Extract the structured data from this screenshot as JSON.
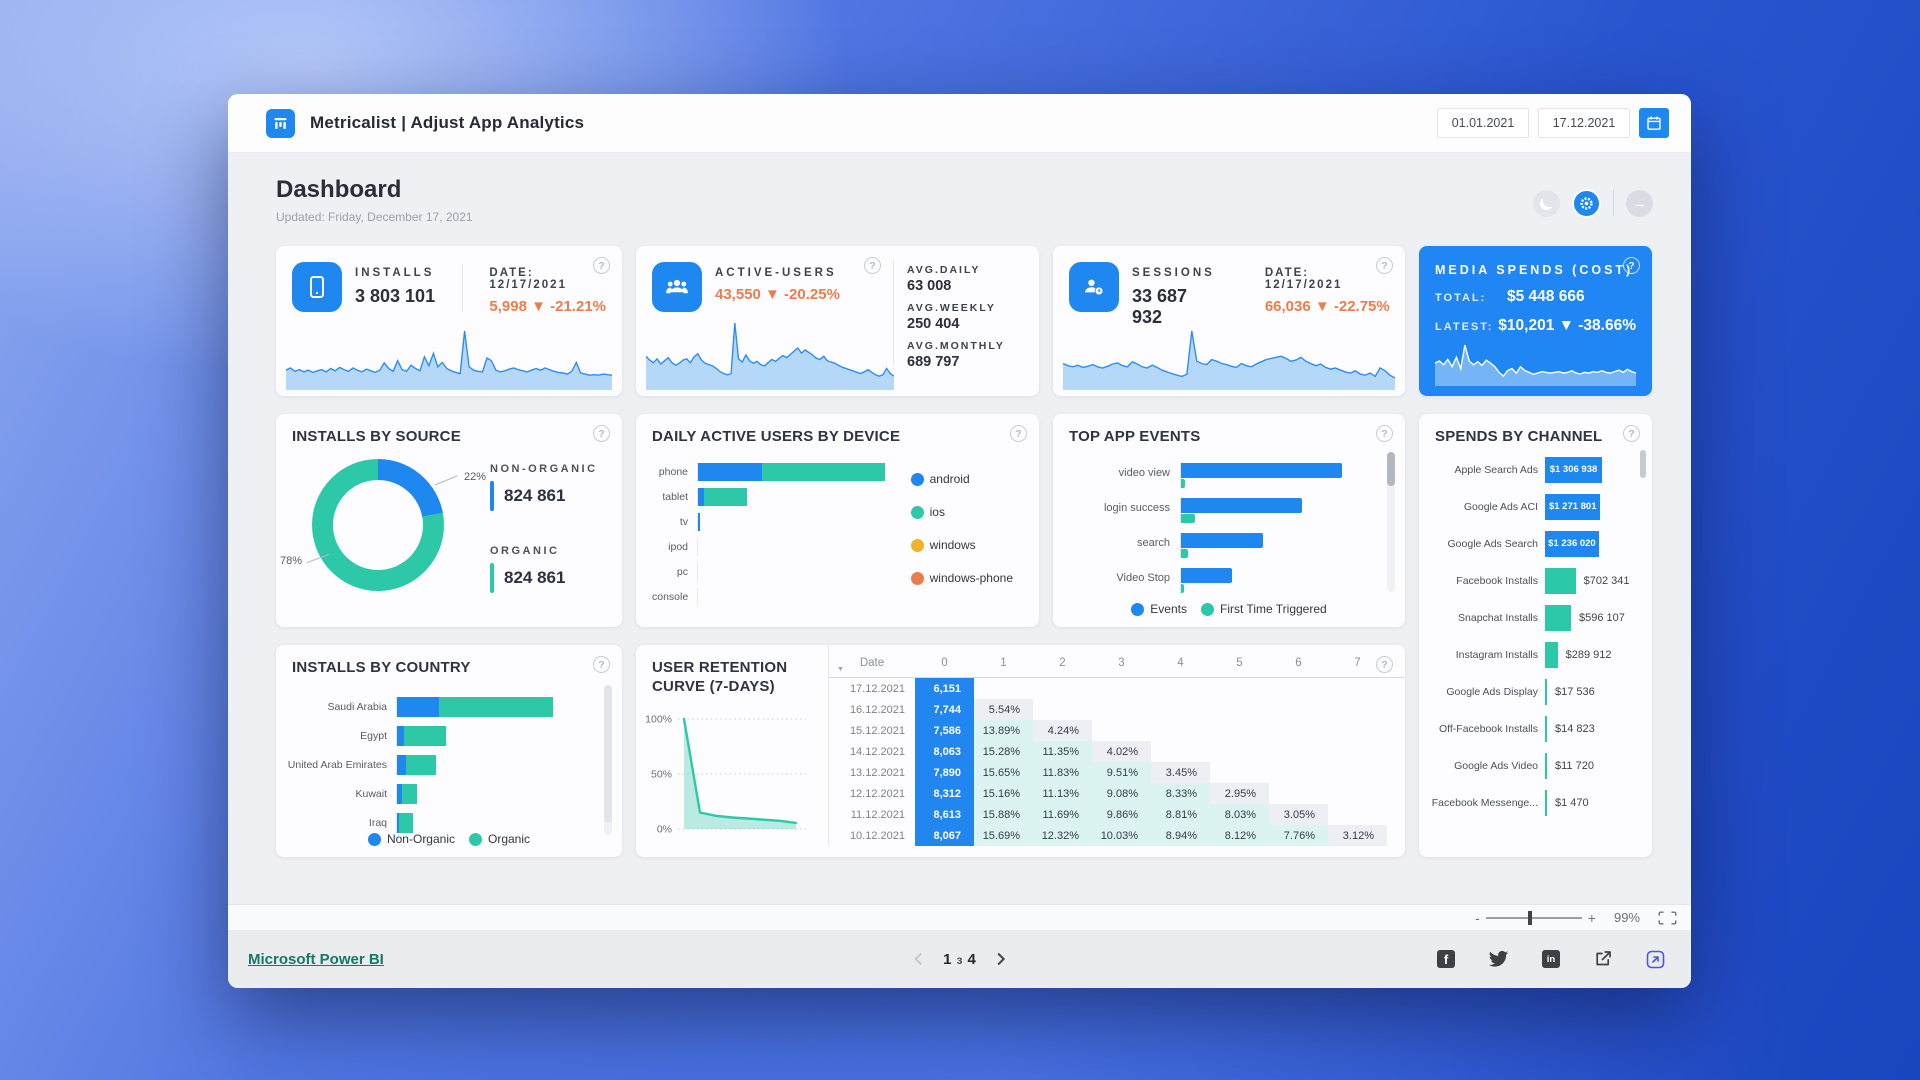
{
  "icons": {
    "help": "?",
    "sort": "▼",
    "minus": "-",
    "plus": "+",
    "arrow_right": "→"
  },
  "header": {
    "app_title": "Metricalist | Adjust App Analytics",
    "date_from": "01.01.2021",
    "date_to": "17.12.2021"
  },
  "page": {
    "title": "Dashboard",
    "updated": "Updated: Friday, December 17, 2021"
  },
  "colors": {
    "accent_blue": "#1f87f0",
    "teal": "#2dc8a8",
    "orange": "#ed7c4b",
    "yellow": "#f2b32c"
  },
  "kpi_installs": {
    "title": "INSTALLS",
    "value": "3 803 101",
    "date_label": "DATE: 12/17/2021",
    "change": "5,998 ▼ -21.21%",
    "chart_data": {
      "type": "area",
      "title": "installs sparkline",
      "values": [
        30,
        34,
        28,
        31,
        27,
        30,
        26,
        29,
        31,
        27,
        33,
        29,
        35,
        31,
        28,
        34,
        30,
        27,
        32,
        29,
        26,
        30,
        43,
        33,
        28,
        47,
        31,
        28,
        39,
        33,
        29,
        54,
        38,
        60,
        36,
        44,
        33,
        29,
        26,
        24,
        100,
        36,
        30,
        28,
        27,
        52,
        47,
        30,
        27,
        29,
        32,
        34,
        31,
        29,
        27,
        30,
        33,
        30,
        34,
        31,
        28,
        26,
        25,
        23,
        28,
        44,
        25,
        23,
        21,
        22,
        21,
        23,
        22,
        21
      ]
    }
  },
  "kpi_active_users": {
    "title": "ACTIVE-USERS",
    "change": "43,550 ▼ -20.25%",
    "stats": [
      {
        "label": "AVG.DAILY",
        "value": "63 008"
      },
      {
        "label": "AVG.WEEKLY",
        "value": "250 404"
      },
      {
        "label": "AVG.MONTHLY",
        "value": "689 797"
      }
    ],
    "chart_data": {
      "type": "area",
      "title": "active users sparkline",
      "values": [
        48,
        42,
        38,
        44,
        36,
        41,
        46,
        38,
        34,
        37,
        42,
        44,
        38,
        47,
        52,
        42,
        37,
        35,
        33,
        29,
        24,
        21,
        19,
        21,
        100,
        44,
        39,
        50,
        41,
        37,
        40,
        35,
        33,
        38,
        43,
        40,
        45,
        49,
        46,
        51,
        56,
        61,
        53,
        58,
        54,
        50,
        45,
        43,
        48,
        41,
        39,
        37,
        34,
        31,
        29,
        27,
        25,
        23,
        21,
        24,
        27,
        23,
        19,
        17,
        19,
        29,
        21,
        17
      ]
    }
  },
  "kpi_sessions": {
    "title": "SESSIONS",
    "value": "33 687 932",
    "date_label": "DATE: 12/17/2021",
    "change": "66,036 ▼ -22.75%",
    "chart_data": {
      "type": "area",
      "title": "sessions sparkline",
      "values": [
        42,
        38,
        36,
        39,
        35,
        37,
        40,
        36,
        34,
        37,
        41,
        43,
        38,
        36,
        45,
        41,
        36,
        34,
        39,
        35,
        30,
        27,
        24,
        21,
        19,
        23,
        100,
        46,
        42,
        40,
        49,
        46,
        42,
        40,
        37,
        35,
        42,
        38,
        36,
        41,
        45,
        49,
        51,
        53,
        55,
        51,
        46,
        48,
        53,
        46,
        42,
        38,
        41,
        35,
        32,
        34,
        30,
        27,
        25,
        29,
        23,
        21,
        25,
        19,
        34,
        29,
        21,
        16
      ]
    }
  },
  "kpi_media_spends": {
    "title": "MEDIA SPENDS (COST)",
    "total_label": "TOTAL:",
    "total": "$5 448 666",
    "latest_label": "LATEST:",
    "latest": "$10,201 ▼ -38.66%",
    "chart_data": {
      "type": "area",
      "title": "media spends sparkline",
      "values": [
        52,
        58,
        48,
        62,
        43,
        68,
        38,
        100,
        58,
        48,
        56,
        46,
        60,
        52,
        43,
        28,
        18,
        33,
        38,
        26,
        43,
        33,
        28,
        23,
        26,
        30,
        28,
        26,
        28,
        30,
        26,
        28,
        32,
        26,
        24,
        28,
        26,
        30,
        28,
        32,
        28,
        26,
        30,
        34,
        28,
        36,
        30,
        26
      ]
    }
  },
  "installs_by_source": {
    "title": "INSTALLS BY SOURCE",
    "chart_data": {
      "type": "pie",
      "slices": [
        {
          "label": "NON-ORGANIC",
          "pct": 22,
          "callout": "22%",
          "value_display": "824 861",
          "color": "#1f87f0"
        },
        {
          "label": "ORGANIC",
          "pct": 78,
          "callout": "78%",
          "value_display": "824 861",
          "color": "#2dc8a8"
        }
      ]
    }
  },
  "daily_active_users_by_device": {
    "title": "DAILY ACTIVE USERS BY DEVICE",
    "chart_data": {
      "type": "bar",
      "orientation": "horizontal-stacked",
      "axis_hidden": true,
      "categories": [
        "phone",
        "tablet",
        "tv",
        "ipod",
        "pc",
        "console"
      ],
      "series": [
        {
          "name": "android",
          "color": "#1f87f0",
          "values": [
            64,
            6,
            1.5,
            0,
            0,
            0
          ]
        },
        {
          "name": "ios",
          "color": "#2dc8a8",
          "values": [
            123,
            43,
            0,
            0,
            0,
            0
          ]
        },
        {
          "name": "windows",
          "color": "#f2b32c",
          "values": [
            0,
            0,
            0,
            0,
            0,
            0
          ]
        },
        {
          "name": "windows-phone",
          "color": "#ed7c4b",
          "values": [
            0,
            0,
            0,
            0,
            0,
            0
          ]
        }
      ],
      "legend": [
        "android",
        "ios",
        "windows",
        "windows-phone"
      ],
      "legend_position": "right"
    }
  },
  "top_app_events": {
    "title": "TOP APP EVENTS",
    "chart_data": {
      "type": "bar",
      "orientation": "horizontal-grouped",
      "axis_hidden": true,
      "categories": [
        "video view",
        "login success",
        "search",
        "Video Stop"
      ],
      "series": [
        {
          "name": "Events",
          "color": "#1f87f0",
          "values": [
            161,
            121,
            82,
            51
          ]
        },
        {
          "name": "First Time Triggered",
          "color": "#2dc8a8",
          "values": [
            4,
            14,
            7,
            3
          ]
        }
      ],
      "legend_position": "bottom"
    }
  },
  "spends_by_channel": {
    "title": "SPENDS BY CHANNEL",
    "chart_data": {
      "type": "bar",
      "orientation": "horizontal",
      "axis_hidden": true,
      "max_value": 1306938,
      "rows": [
        {
          "label": "Apple Search Ads",
          "value": 1306938,
          "display": "$1 306 938",
          "color": "#1f87f0",
          "label_inside": true
        },
        {
          "label": "Google Ads ACI",
          "value": 1271801,
          "display": "$1 271 801",
          "color": "#1f87f0",
          "label_inside": true
        },
        {
          "label": "Google Ads Search",
          "value": 1236020,
          "display": "$1 236 020",
          "color": "#1f87f0",
          "label_inside": true
        },
        {
          "label": "Facebook Installs",
          "value": 702341,
          "display": "$702 341",
          "color": "#2dc8a8",
          "label_inside": false
        },
        {
          "label": "Snapchat Installs",
          "value": 596107,
          "display": "$596 107",
          "color": "#2dc8a8",
          "label_inside": false
        },
        {
          "label": "Instagram Installs",
          "value": 289912,
          "display": "$289 912",
          "color": "#2dc8a8",
          "label_inside": false
        },
        {
          "label": "Google Ads Display",
          "value": 17536,
          "display": "$17 536",
          "color": "#2dc8a8",
          "label_inside": false
        },
        {
          "label": "Off-Facebook Installs",
          "value": 14823,
          "display": "$14 823",
          "color": "#2dc8a8",
          "label_inside": false
        },
        {
          "label": "Google Ads Video",
          "value": 11720,
          "display": "$11 720",
          "color": "#2dc8a8",
          "label_inside": false
        },
        {
          "label": "Facebook Messenge...",
          "value": 1470,
          "display": "$1 470",
          "color": "#2dc8a8",
          "label_inside": false
        }
      ]
    }
  },
  "installs_by_country": {
    "title": "INSTALLS BY COUNTRY",
    "chart_data": {
      "type": "bar",
      "orientation": "horizontal-stacked",
      "axis_hidden": true,
      "categories": [
        "Saudi Arabia",
        "Egypt",
        "United Arab Emirates",
        "Kuwait",
        "Iraq"
      ],
      "series": [
        {
          "name": "Non-Organic",
          "color": "#1f87f0",
          "values": [
            42,
            7,
            9,
            5,
            2
          ]
        },
        {
          "name": "Organic",
          "color": "#2dc8a8",
          "values": [
            114,
            42,
            30,
            15,
            14
          ]
        }
      ],
      "legend_position": "bottom"
    }
  },
  "user_retention": {
    "title": "USER RETENTION CURVE (7-DAYS)",
    "chart_data": {
      "type": "area",
      "title": "retention curve",
      "color": "#2dc8a8",
      "yticks": [
        "100%",
        "50%",
        "0%"
      ],
      "ylim": [
        0,
        100
      ],
      "x": [
        0,
        1,
        2,
        3,
        4,
        5,
        6,
        7
      ],
      "values": [
        100,
        15,
        12,
        10.5,
        9.5,
        8.5,
        7.5,
        5.5
      ]
    },
    "table": {
      "headers": [
        "Date",
        "0",
        "1",
        "2",
        "3",
        "4",
        "5",
        "6",
        "7"
      ],
      "rows": [
        {
          "date": "17.12.2021",
          "cells": [
            "6,151"
          ]
        },
        {
          "date": "16.12.2021",
          "cells": [
            "7,744",
            "5.54%"
          ]
        },
        {
          "date": "15.12.2021",
          "cells": [
            "7,586",
            "13.89%",
            "4.24%"
          ]
        },
        {
          "date": "14.12.2021",
          "cells": [
            "8,063",
            "15.28%",
            "11.35%",
            "4.02%"
          ]
        },
        {
          "date": "13.12.2021",
          "cells": [
            "7,890",
            "15.65%",
            "11.83%",
            "9.51%",
            "3.45%"
          ]
        },
        {
          "date": "12.12.2021",
          "cells": [
            "8,312",
            "15.16%",
            "11.13%",
            "9.08%",
            "8.33%",
            "2.95%"
          ]
        },
        {
          "date": "11.12.2021",
          "cells": [
            "8,613",
            "15.88%",
            "11.69%",
            "9.86%",
            "8.81%",
            "8.03%",
            "3.05%"
          ]
        },
        {
          "date": "10.12.2021",
          "cells": [
            "8,067",
            "15.69%",
            "12.32%",
            "10.03%",
            "8.94%",
            "8.12%",
            "7.76%",
            "3.12%"
          ]
        }
      ]
    }
  },
  "zoombar": {
    "zoom_level": "99%"
  },
  "footer": {
    "brand_link": "Microsoft Power BI",
    "pagination": {
      "current": "1",
      "of": "з",
      "total": "4"
    }
  }
}
